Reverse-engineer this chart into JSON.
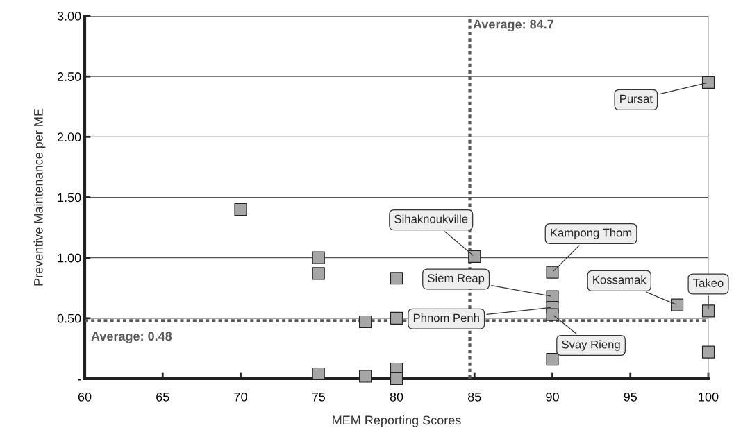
{
  "chart_data": {
    "type": "scatter",
    "xlabel": "MEM Reporting Scores",
    "ylabel": "Preventive Maintenance per ME",
    "x": [
      70,
      75,
      75,
      75,
      78,
      78,
      80,
      80,
      80,
      80,
      85,
      90,
      90,
      90,
      90,
      90,
      98,
      100,
      100,
      100
    ],
    "values": [
      1.4,
      1.0,
      0.87,
      0.04,
      0.47,
      0.02,
      0.83,
      0.5,
      0.08,
      0.0,
      1.01,
      0.88,
      0.68,
      0.59,
      0.53,
      0.16,
      0.61,
      0.56,
      0.22,
      2.45
    ],
    "color": "#a6a6a6",
    "marker": "square",
    "xlim": [
      60,
      100
    ],
    "xticks": [
      60,
      65,
      70,
      75,
      80,
      85,
      90,
      95,
      100
    ],
    "ylim": [
      0,
      3
    ],
    "yticks": [
      {
        "value": 0,
        "label": "-"
      },
      {
        "value": 0.5,
        "label": "0.50"
      },
      {
        "value": 1.0,
        "label": "1.00"
      },
      {
        "value": 1.5,
        "label": "1.50"
      },
      {
        "value": 2.0,
        "label": "2.00"
      },
      {
        "value": 2.5,
        "label": "2.50"
      },
      {
        "value": 3.0,
        "label": "3.00"
      }
    ],
    "grid": "y",
    "ref_lines": [
      {
        "axis": "x",
        "value": 84.7,
        "label": "Average: 84.7",
        "color": "#595959",
        "line_style": "dotted"
      },
      {
        "axis": "y",
        "value": 0.48,
        "label": "Average: 0.48",
        "color": "#595959",
        "line_style": "dotted"
      }
    ],
    "annotations": [
      {
        "text": "Pursat",
        "x": 100,
        "y": 2.45
      },
      {
        "text": "Sihaknoukville",
        "x": 85,
        "y": 1.01
      },
      {
        "text": "Kampong Thom",
        "x": 90,
        "y": 0.88
      },
      {
        "text": "Siem Reap",
        "x": 90,
        "y": 0.68
      },
      {
        "text": "Phnom Penh",
        "x": 90,
        "y": 0.59
      },
      {
        "text": "Svay Rieng",
        "x": 90,
        "y": 0.53
      },
      {
        "text": "Kossamak",
        "x": 98,
        "y": 0.61
      },
      {
        "text": "Takeo",
        "x": 100,
        "y": 0.56
      }
    ]
  }
}
